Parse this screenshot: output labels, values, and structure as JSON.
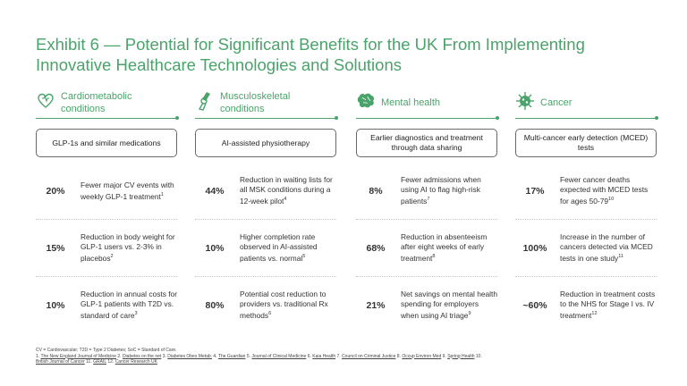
{
  "title_line1": "Exhibit 6 — Potential for Significant Benefits for the UK From Implementing",
  "title_line2": "Innovative Healthcare Technologies and Solutions",
  "columns": [
    {
      "label": "Cardiometabolic conditions",
      "icon": "heart-icon",
      "pill": "GLP-1s and similar medications",
      "stats": [
        {
          "value": "20%",
          "text": "Fewer major CV events with weekly GLP-1 treatment",
          "ref": "1"
        },
        {
          "value": "15%",
          "text": "Reduction in body weight for GLP-1 users vs. 2-3% in placebos",
          "ref": "2"
        },
        {
          "value": "10%",
          "text": "Reduction in annual costs for GLP-1 patients with T2D vs. standard of care",
          "ref": "3"
        }
      ]
    },
    {
      "label": "Musculoskeletal conditions",
      "icon": "joint-icon",
      "pill": "AI-assisted physiotherapy",
      "stats": [
        {
          "value": "44%",
          "text": "Reduction in waiting lists for all MSK conditions during a 12-week pilot",
          "ref": "4"
        },
        {
          "value": "10%",
          "text": "Higher completion rate observed in AI-assisted patients vs. normal",
          "ref": "5"
        },
        {
          "value": "80%",
          "text": "Potential cost reduction to providers vs. traditional Rx methods",
          "ref": "6"
        }
      ]
    },
    {
      "label": "Mental health",
      "icon": "brain-icon",
      "pill": "Earlier diagnostics and treatment through data sharing",
      "stats": [
        {
          "value": "8%",
          "text": "Fewer admissions when using AI to flag high-risk patients",
          "ref": "7"
        },
        {
          "value": "68%",
          "text": "Reduction in absenteeism after eight weeks of early treatment",
          "ref": "8"
        },
        {
          "value": "21%",
          "text": "Net savings on mental health spending for employers when using AI triage",
          "ref": "9"
        }
      ]
    },
    {
      "label": "Cancer",
      "icon": "cell-icon",
      "pill": "Multi-cancer early detection (MCED) tests",
      "stats": [
        {
          "value": "17%",
          "text": "Fewer cancer deaths expected with MCED tests for ages 50-79",
          "ref": "10"
        },
        {
          "value": "100%",
          "text": "Increase in the number of cancers detected via MCED tests in one study",
          "ref": "11"
        },
        {
          "value": "~60%",
          "text": "Reduction in treatment costs to the NHS for Stage I vs. IV treatment",
          "ref": "12"
        }
      ]
    }
  ],
  "footer": {
    "abbreviations": "CV = Cardiovascular; T2D = Type 2 Diabetes; SoC = Standard of Care.",
    "sources": [
      {
        "n": "1.",
        "name": "The New England Journal of Medicine"
      },
      {
        "n": "2.",
        "name": "Diabetes on the net"
      },
      {
        "n": "3.",
        "name": "Diabetes Obes Metab."
      },
      {
        "n": "4.",
        "name": "The Guardian"
      },
      {
        "n": "5.",
        "name": "Journal of Clinical Medicine"
      },
      {
        "n": "6.",
        "name": "Kaia Health"
      },
      {
        "n": "7.",
        "name": "Council on Criminal Justice"
      },
      {
        "n": "8.",
        "name": "Occup Environ Med"
      },
      {
        "n": "9.",
        "name": "Spring Health"
      },
      {
        "n": "10.",
        "name": "British Journal of Cancer"
      },
      {
        "n": "11.",
        "name": "GRAIL"
      },
      {
        "n": "12.",
        "name": "Cancer Research UK"
      }
    ]
  },
  "colors": {
    "accent": "#4aa36a",
    "text": "#333333",
    "border": "#6a6a6a"
  }
}
